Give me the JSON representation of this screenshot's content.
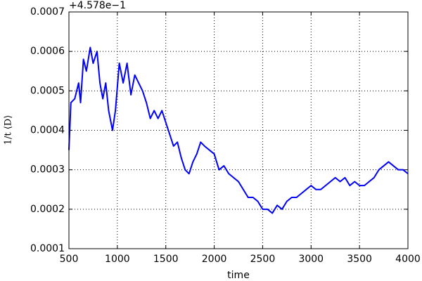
{
  "chart_data": {
    "type": "line",
    "offset_label": "+4.578e−1",
    "xlabel": "time",
    "ylabel": "1/t ⟨D⟩",
    "x": [
      500,
      520,
      560,
      600,
      620,
      650,
      680,
      720,
      750,
      790,
      820,
      850,
      880,
      910,
      950,
      980,
      1020,
      1060,
      1100,
      1140,
      1180,
      1220,
      1260,
      1300,
      1340,
      1380,
      1420,
      1460,
      1500,
      1540,
      1580,
      1620,
      1660,
      1700,
      1740,
      1780,
      1820,
      1860,
      1900,
      1950,
      2000,
      2050,
      2100,
      2150,
      2200,
      2250,
      2300,
      2350,
      2400,
      2450,
      2500,
      2550,
      2600,
      2650,
      2700,
      2750,
      2800,
      2850,
      2900,
      2950,
      3000,
      3050,
      3100,
      3150,
      3200,
      3250,
      3300,
      3350,
      3400,
      3450,
      3500,
      3550,
      3600,
      3650,
      3700,
      3750,
      3800,
      3850,
      3900,
      3950,
      4000
    ],
    "series": [
      {
        "name": "D",
        "color": "#0000ff",
        "values": [
          0.00035,
          0.00047,
          0.00048,
          0.00052,
          0.00047,
          0.00058,
          0.00055,
          0.00061,
          0.00057,
          0.0006,
          0.00052,
          0.00048,
          0.00052,
          0.00045,
          0.0004,
          0.00045,
          0.00057,
          0.00052,
          0.00057,
          0.00049,
          0.00054,
          0.00052,
          0.0005,
          0.00047,
          0.00043,
          0.00045,
          0.00043,
          0.00045,
          0.00042,
          0.00039,
          0.00036,
          0.00037,
          0.00033,
          0.0003,
          0.00029,
          0.00032,
          0.00034,
          0.00037,
          0.00036,
          0.00035,
          0.00034,
          0.0003,
          0.00031,
          0.00029,
          0.00028,
          0.00027,
          0.00025,
          0.00023,
          0.00023,
          0.00022,
          0.0002,
          0.0002,
          0.00019,
          0.00021,
          0.0002,
          0.00022,
          0.00023,
          0.00023,
          0.00024,
          0.00025,
          0.00026,
          0.00025,
          0.00025,
          0.00026,
          0.00027,
          0.00028,
          0.00027,
          0.00028,
          0.00026,
          0.00027,
          0.00026,
          0.00026,
          0.00027,
          0.00028,
          0.0003,
          0.00031,
          0.00032,
          0.00031,
          0.0003,
          0.0003,
          0.00029
        ]
      }
    ],
    "xlim": [
      500,
      4000
    ],
    "xticks": [
      500,
      1000,
      1500,
      2000,
      2500,
      3000,
      3500,
      4000
    ],
    "ylim": [
      0.0001,
      0.0007
    ],
    "yticks": [
      0.0001,
      0.0002,
      0.0003,
      0.0004,
      0.0005,
      0.0006,
      0.0007
    ],
    "grid": true
  }
}
